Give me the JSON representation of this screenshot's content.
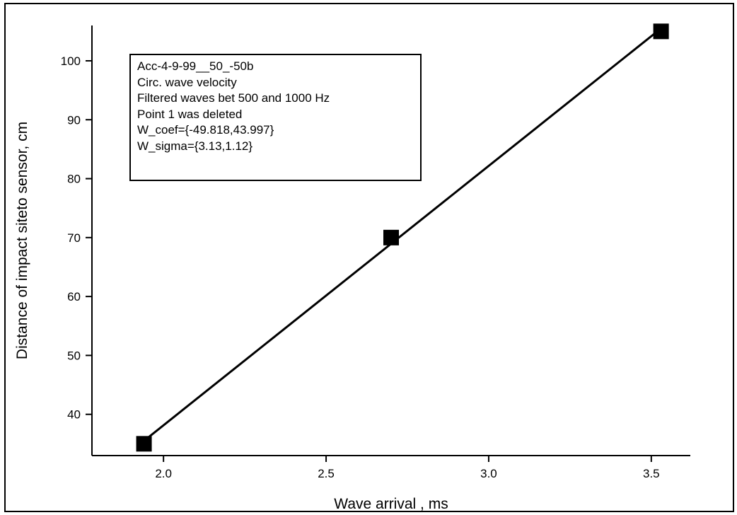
{
  "chart_data": {
    "type": "scatter",
    "title": "",
    "xlabel": "Wave arrival , ms",
    "ylabel": "Distance of impact siteto sensor, cm",
    "xlim": [
      1.78,
      3.62
    ],
    "ylim": [
      33,
      106
    ],
    "x_ticks": [
      2.0,
      2.5,
      3.0,
      3.5
    ],
    "x_tick_labels": [
      "2.0",
      "2.5",
      "3.0",
      "3.5"
    ],
    "y_ticks": [
      40,
      50,
      60,
      70,
      80,
      90,
      100
    ],
    "y_tick_labels": [
      "40",
      "50",
      "60",
      "70",
      "80",
      "90",
      "100"
    ],
    "grid": false,
    "series": [
      {
        "points": [
          {
            "x": 1.94,
            "y": 35
          },
          {
            "x": 2.7,
            "y": 70
          },
          {
            "x": 3.53,
            "y": 105
          }
        ],
        "fit_line": {
          "x": [
            1.94,
            3.53
          ],
          "y": [
            35.5,
            105.5
          ]
        },
        "marker": "square",
        "color": "#000000"
      }
    ],
    "annotation_box": {
      "lines": [
        "Acc-4-9-99__50_-50b",
        "Circ. wave velocity",
        "Filtered waves bet 500 and 1000 Hz",
        "Point 1 was deleted",
        "W_coef={-49.818,43.997}",
        "W_sigma={3.13,1.12}"
      ]
    }
  }
}
